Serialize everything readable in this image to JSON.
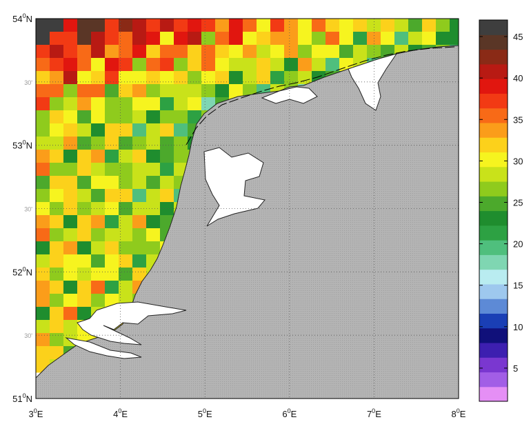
{
  "map": {
    "lon_range": [
      3,
      8
    ],
    "lat_range": [
      51,
      54
    ],
    "x_ticks": [
      {
        "value": 3,
        "deg": "3",
        "sup": "0",
        "hem": "E"
      },
      {
        "value": 4,
        "deg": "4",
        "sup": "0",
        "hem": "E"
      },
      {
        "value": 5,
        "deg": "5",
        "sup": "0",
        "hem": "E"
      },
      {
        "value": 6,
        "deg": "6",
        "sup": "0",
        "hem": "E"
      },
      {
        "value": 7,
        "deg": "7",
        "sup": "0",
        "hem": "E"
      },
      {
        "value": 8,
        "deg": "8",
        "sup": "0",
        "hem": "E"
      }
    ],
    "y_ticks_major": [
      {
        "value": 51,
        "deg": "51",
        "sup": "0",
        "hem": "N"
      },
      {
        "value": 52,
        "deg": "52",
        "sup": "0",
        "hem": "N"
      },
      {
        "value": 53,
        "deg": "53",
        "sup": "0",
        "hem": "N"
      },
      {
        "value": 54,
        "deg": "54",
        "sup": "0",
        "hem": "N"
      }
    ],
    "y_ticks_minor": [
      {
        "value": 51.5,
        "label": "30'"
      },
      {
        "value": 52.5,
        "label": "30'"
      },
      {
        "value": 53.5,
        "label": "30'"
      }
    ],
    "grid": true,
    "land_color": "#b4b4b4",
    "coastline_color": "#111111"
  },
  "colorbar": {
    "range": [
      1,
      47
    ],
    "ticks": [
      "5",
      "10",
      "15",
      "20",
      "25",
      "30",
      "35",
      "40",
      "45"
    ],
    "colors": [
      "#e58ff5",
      "#a25ee6",
      "#7a37d0",
      "#3d1fb0",
      "#10107a",
      "#1a3fb5",
      "#5d8ad6",
      "#9ec8ee",
      "#b9ecf0",
      "#7fd6b2",
      "#4fbf7d",
      "#2da143",
      "#1f8d2e",
      "#4ca92c",
      "#8fcb1d",
      "#c9e21a",
      "#f6f41f",
      "#fcd11b",
      "#fb9d1a",
      "#f86a17",
      "#f23a14",
      "#e1160f",
      "#b81a13",
      "#8a2a16",
      "#5a3626",
      "#3e3e3e"
    ]
  }
}
